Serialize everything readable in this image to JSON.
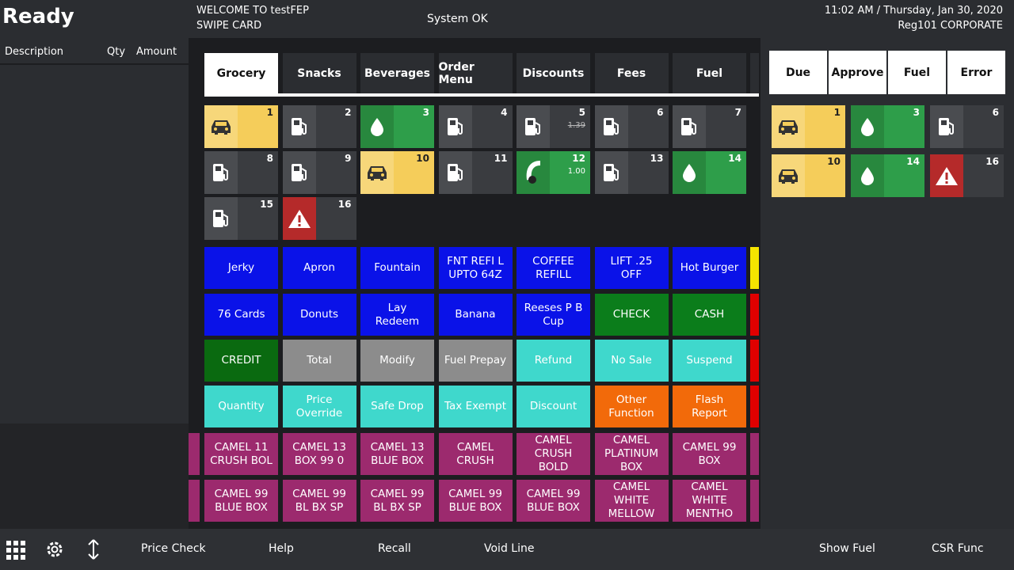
{
  "header": {
    "status": "Ready",
    "welcome": "WELCOME TO testFEP",
    "prompt": "SWIPE CARD",
    "system": "System OK",
    "datetime": "11:02 AM / Thursday, Jan 30, 2020",
    "register": "Reg101  CORPORATE"
  },
  "receipt": {
    "columns": [
      "Description",
      "Qty",
      "Amount"
    ]
  },
  "tabs": [
    "Grocery",
    "Snacks",
    "Beverages",
    "Order Menu",
    "Discounts",
    "Fees",
    "Fuel"
  ],
  "pumps": [
    {
      "number": 1
    },
    {
      "number": 2
    },
    {
      "number": 3
    },
    {
      "number": 4
    },
    {
      "number": 5,
      "price": "1.39"
    },
    {
      "number": 6
    },
    {
      "number": 7
    },
    {
      "number": 8
    },
    {
      "number": 9
    },
    {
      "number": 10
    },
    {
      "number": 11
    },
    {
      "number": 12,
      "price": "1.00"
    },
    {
      "number": 13
    },
    {
      "number": 14
    },
    {
      "number": 15
    },
    {
      "number": 16
    }
  ],
  "pump_filters": [
    "Due",
    "Approve",
    "Fuel",
    "Error"
  ],
  "pump_alerts": [
    {
      "number": 1
    },
    {
      "number": 3
    },
    {
      "number": 6
    },
    {
      "number": 10
    },
    {
      "number": 14
    },
    {
      "number": 16
    }
  ],
  "buttons": [
    [
      "Jerky",
      "Apron",
      "Fountain",
      "FNT REFI L UPTO 64Z",
      "COFFEE REFILL",
      "LIFT .25 OFF",
      "Hot Burger"
    ],
    [
      "76 Cards",
      "Donuts",
      "Lay Redeem",
      "Banana",
      "Reeses P B Cup",
      "CHECK",
      "CASH"
    ],
    [
      "CREDIT",
      "Total",
      "Modify",
      "Fuel Prepay",
      "Refund",
      "No Sale",
      "Suspend"
    ],
    [
      "Quantity",
      "Price Override",
      "Safe Drop",
      "Tax Exempt",
      "Discount",
      "Other Function",
      "Flash Report"
    ],
    [
      "CAMEL 11 CRUSH BOL",
      "CAMEL 13 BOX 99 0",
      "CAMEL 13 BLUE BOX",
      "CAMEL CRUSH",
      "CAMEL CRUSH BOLD",
      "CAMEL PLATINUM BOX",
      "CAMEL 99 BOX"
    ],
    [
      "CAMEL 99 BLUE BOX",
      "CAMEL 99 BL BX SP",
      "CAMEL 99 BL BX SP",
      "CAMEL 99 BLUE BOX",
      "CAMEL 99 BLUE BOX",
      "CAMEL WHITE MELLOW",
      "CAMEL WHITE MENTHO"
    ]
  ],
  "footer": [
    "Price Check",
    "Help",
    "Recall",
    "Void Line",
    "Show Fuel",
    "CSR Func"
  ]
}
